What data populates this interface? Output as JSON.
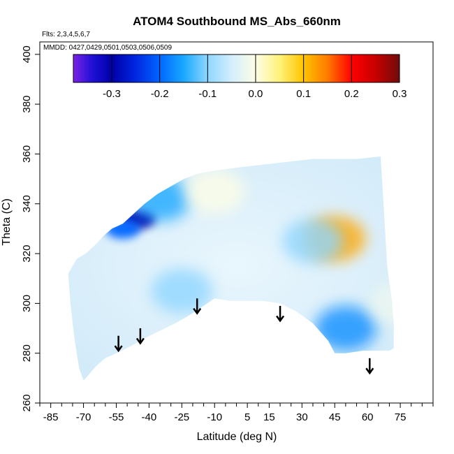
{
  "chart_data": {
    "type": "heatmap",
    "title": "ATOM4 Southbound MS_Abs_660nm",
    "flights_note": "Flts: 2,3,4,5,6,7",
    "dates_note": "MMDD: 0427,0429,0501,0503,0506,0509",
    "xlabel": "Latitude (deg N)",
    "ylabel": "Theta (C)",
    "xlim": [
      -90,
      90
    ],
    "ylim": [
      260,
      405
    ],
    "x_ticks": [
      -85,
      -70,
      -55,
      -40,
      -25,
      -10,
      5,
      15,
      30,
      45,
      60,
      75
    ],
    "x_minor_ticks": [
      -90,
      -80,
      -75,
      -65,
      -60,
      -50,
      -45,
      -35,
      -30,
      -20,
      -15,
      -5,
      0,
      10,
      20,
      25,
      35,
      40,
      50,
      55,
      65,
      70,
      80,
      85,
      90
    ],
    "y_ticks": [
      260,
      280,
      300,
      320,
      340,
      360,
      380,
      400
    ],
    "colorbar": {
      "min": -0.38,
      "max": 0.3,
      "ticks": [
        -0.3,
        -0.2,
        -0.1,
        0.0,
        0.1,
        0.2,
        0.3
      ],
      "tick_labels": [
        "-0.3",
        "-0.2",
        "-0.1",
        "0.0",
        "0.1",
        "0.2",
        "0.3"
      ],
      "stops": [
        {
          "v": -0.38,
          "color": "#7b22e6"
        },
        {
          "v": -0.34,
          "color": "#1f10d6"
        },
        {
          "v": -0.3,
          "color": "#0000a8"
        },
        {
          "v": -0.25,
          "color": "#0027e0"
        },
        {
          "v": -0.2,
          "color": "#0066ff"
        },
        {
          "v": -0.15,
          "color": "#1aa8ff"
        },
        {
          "v": -0.1,
          "color": "#8fd6ff"
        },
        {
          "v": -0.05,
          "color": "#d3eefc"
        },
        {
          "v": 0.0,
          "color": "#fdfde6"
        },
        {
          "v": 0.05,
          "color": "#fff27a"
        },
        {
          "v": 0.1,
          "color": "#ffc400"
        },
        {
          "v": 0.15,
          "color": "#ff7a00"
        },
        {
          "v": 0.2,
          "color": "#ff0000"
        },
        {
          "v": 0.25,
          "color": "#c80000"
        },
        {
          "v": 0.3,
          "color": "#6e0c0c"
        }
      ]
    },
    "field": {
      "background_value": -0.05,
      "features": [
        {
          "lat": -45,
          "theta": 334,
          "value": -0.3,
          "note": "strong negative core"
        },
        {
          "lat": -52,
          "theta": 330,
          "value": -0.2
        },
        {
          "lat": -35,
          "theta": 342,
          "value": -0.15
        },
        {
          "lat": -10,
          "theta": 345,
          "value": 0.0
        },
        {
          "lat": -25,
          "theta": 305,
          "value": -0.1
        },
        {
          "lat": 45,
          "theta": 326,
          "value": 0.12,
          "note": "positive anomaly"
        },
        {
          "lat": 50,
          "theta": 290,
          "value": -0.17
        },
        {
          "lat": 35,
          "theta": 325,
          "value": -0.1
        },
        {
          "lat": 75,
          "theta": 300,
          "value": -0.02
        }
      ]
    },
    "arrows": [
      {
        "lat": -54,
        "theta_top": 287,
        "theta_bottom": 281
      },
      {
        "lat": -44,
        "theta_top": 290,
        "theta_bottom": 284
      },
      {
        "lat": -18,
        "theta_top": 302,
        "theta_bottom": 296
      },
      {
        "lat": 20,
        "theta_top": 299,
        "theta_bottom": 293
      },
      {
        "lat": 61,
        "theta_top": 278,
        "theta_bottom": 272
      }
    ]
  }
}
